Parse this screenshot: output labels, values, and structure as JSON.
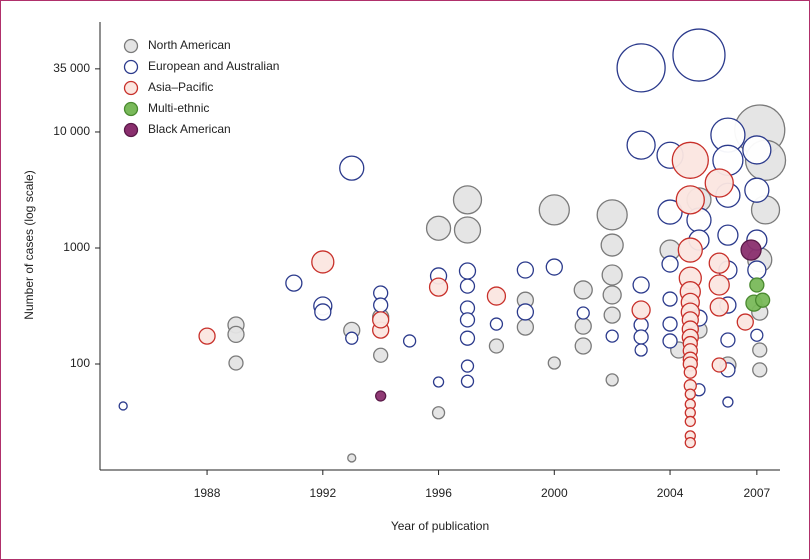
{
  "chart_data": {
    "type": "scatter",
    "xlabel": "Year of publication",
    "ylabel": "Number of cases (log scale)",
    "log_y": true,
    "legend": "upper left",
    "xlim": [
      1984.3,
      2007.8
    ],
    "ylim": [
      12.2,
      88700
    ],
    "xticks": [
      1988,
      1992,
      1996,
      2000,
      2004,
      2007
    ],
    "yticks": [
      100,
      1000,
      {
        "value": 10000,
        "label": "10 000"
      },
      {
        "value": 35000,
        "label": "35 000"
      }
    ],
    "series": [
      {
        "name": "North American",
        "color": "#e4e4e4",
        "edge": "#7a7a7a",
        "x": [
          1989,
          1989,
          1989,
          1993,
          1994,
          1994,
          1993,
          1996,
          1996,
          1997,
          1997,
          1998,
          1999,
          1999,
          2000,
          2000,
          2001,
          2001,
          2001,
          2002,
          2002,
          2002,
          2002,
          2002,
          2002,
          2004,
          2004.3,
          2005,
          2005,
          2006,
          2007.1,
          2007.3,
          2007.3,
          2007.1,
          2007.1,
          2007.1,
          2007.1
        ],
        "values": [
          217,
          180,
          102,
          195,
          119,
          254,
          15.5,
          1480,
          38,
          1430,
          2600,
          143,
          355,
          208,
          2130,
          102,
          435,
          212,
          143,
          1930,
          1060,
          585,
          394,
          264,
          73,
          960,
          132,
          2600,
          196,
          98,
          10400,
          5700,
          2130,
          790,
          280,
          132,
          89
        ],
        "sizes": [
          8,
          8,
          7,
          8,
          7,
          8,
          4,
          12,
          6,
          13,
          14,
          7,
          8,
          8,
          15,
          6,
          9,
          8,
          8,
          15,
          11,
          10,
          9,
          8,
          6,
          10,
          8,
          12,
          8,
          8,
          25,
          20,
          14,
          12,
          8,
          7,
          7
        ]
      },
      {
        "name": "European and Australian",
        "color": "#ffffff",
        "edge": "#2b3a8c",
        "x": [
          1985.1,
          1991,
          1992,
          1992,
          1993,
          1993,
          1994,
          1994,
          1995,
          1996,
          1996,
          1997,
          1997,
          1997,
          1997,
          1997,
          1997,
          1997,
          1998,
          1999,
          1999,
          2000,
          2001,
          2002,
          2003,
          2003,
          2003,
          2003,
          2003,
          2003,
          2004,
          2004,
          2004,
          2004,
          2004,
          2004,
          2005,
          2005,
          2005,
          2005,
          2005,
          2006,
          2006,
          2006,
          2006,
          2006,
          2006,
          2006,
          2006,
          2006,
          2007,
          2007,
          2007,
          2007,
          2007
        ],
        "values": [
          43.5,
          498,
          316,
          281,
          167,
          4880,
          409,
          322,
          158,
          574,
          70,
          633,
          469,
          304,
          240,
          167,
          96,
          71,
          221,
          646,
          281,
          685,
          275,
          174,
          480,
          217,
          171,
          132,
          35700,
          7700,
          6300,
          2040,
          727,
          363,
          221,
          158,
          46000,
          1740,
          1170,
          249,
          60,
          9400,
          5700,
          2850,
          1290,
          645,
          322,
          161,
          89,
          47,
          7000,
          3150,
          1170,
          645,
          177
        ],
        "sizes": [
          4,
          8,
          9,
          8,
          6,
          12,
          7,
          7,
          6,
          8,
          5,
          8,
          7,
          7,
          7,
          7,
          6,
          6,
          6,
          8,
          8,
          8,
          6,
          6,
          8,
          7,
          7,
          6,
          24,
          14,
          13,
          12,
          8,
          7,
          7,
          7,
          26,
          12,
          10,
          8,
          6,
          17,
          15,
          12,
          10,
          9,
          8,
          7,
          7,
          5,
          14,
          12,
          10,
          9,
          6
        ]
      },
      {
        "name": "Asia–Pacific",
        "color": "#fbe6e0",
        "edge": "#c8302a",
        "x": [
          1988,
          1992,
          1994,
          1994,
          1996,
          1998,
          2003,
          2004.7,
          2004.7,
          2004.7,
          2004.7,
          2004.7,
          2004.7,
          2004.7,
          2004.7,
          2004.7,
          2004.7,
          2004.7,
          2004.7,
          2004.7,
          2004.7,
          2004.7,
          2004.7,
          2004.7,
          2004.7,
          2004.7,
          2004.7,
          2004.7,
          2004.7,
          2005.7,
          2005.7,
          2005.7,
          2005.7,
          2005.7,
          2006.6
        ],
        "values": [
          174,
          758,
          196,
          240,
          460,
          385,
          292,
          5700,
          2600,
          960,
          550,
          420,
          340,
          280,
          240,
          200,
          170,
          150,
          130,
          110,
          100,
          85,
          65,
          55,
          45,
          38,
          32,
          24,
          21,
          3630,
          740,
          480,
          310,
          98,
          230
        ],
        "sizes": [
          8,
          11,
          8,
          8,
          9,
          9,
          9,
          18,
          14,
          12,
          11,
          10,
          9,
          9,
          8,
          8,
          8,
          7,
          7,
          7,
          7,
          6,
          6,
          5,
          5,
          5,
          5,
          5,
          5,
          14,
          10,
          10,
          9,
          7,
          8
        ]
      },
      {
        "name": "Multi-ethnic",
        "color": "#79b95a",
        "edge": "#4a8a30",
        "x": [
          2006.9,
          2007.2,
          2007
        ],
        "values": [
          335,
          355,
          480
        ],
        "sizes": [
          8,
          7,
          7
        ]
      },
      {
        "name": "Black American",
        "color": "#8a2f6e",
        "edge": "#5a1a48",
        "x": [
          1994,
          2006.8
        ],
        "values": [
          53,
          960
        ],
        "sizes": [
          5,
          10
        ]
      }
    ]
  }
}
